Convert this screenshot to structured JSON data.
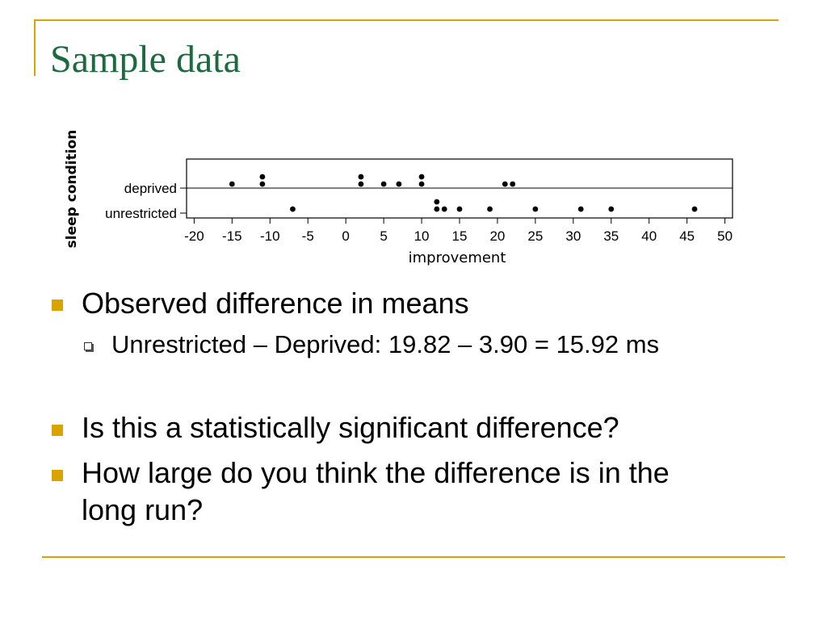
{
  "slide": {
    "title": "Sample data",
    "title_color": "#1b6b3e",
    "accent_color": "#d9a400"
  },
  "bullets": [
    {
      "text": "Observed difference in means"
    },
    {
      "text": "Is this a statistically significant difference?"
    },
    {
      "text": "How large do you think the difference is in the"
    },
    {
      "text": "long run?"
    }
  ],
  "sub_bullets": [
    {
      "text": "Unrestricted – Deprived: 19.82 – 3.90 = 15.92 ms"
    }
  ],
  "chart_data": {
    "type": "scatter",
    "xlabel": "improvement",
    "ylabel": "sleep condition",
    "xlim": [
      -21,
      51
    ],
    "x_ticks": [
      -20,
      -15,
      -10,
      -5,
      0,
      5,
      10,
      15,
      20,
      25,
      30,
      35,
      40,
      45,
      50
    ],
    "x_tick_labels": [
      "-20",
      "-15",
      "-10",
      "-5",
      "0",
      "5",
      "10",
      "15",
      "20",
      "25",
      "30",
      "35",
      "40",
      "45",
      "50"
    ],
    "categories": [
      "deprived",
      "unrestricted"
    ],
    "grid": false,
    "series": [
      {
        "category": "deprived",
        "values": [
          -15,
          -11,
          -11,
          2,
          2,
          5,
          7,
          10,
          10,
          21,
          22
        ]
      },
      {
        "category": "unrestricted",
        "values": [
          -7,
          12,
          12,
          13,
          15,
          19,
          25,
          31,
          35,
          46
        ]
      }
    ]
  }
}
